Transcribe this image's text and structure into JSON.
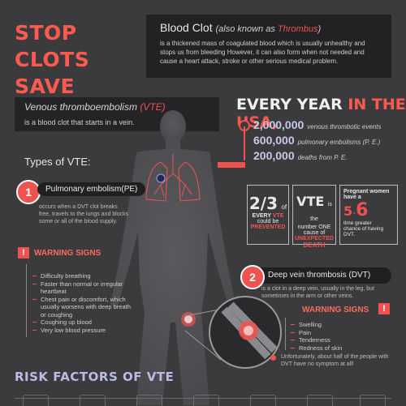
{
  "header": {
    "title_line1": "STOP CLOTS",
    "title_line2": "SAVE LIVES!"
  },
  "definition": {
    "term": "Blood Clot",
    "aka_prefix": "(also known as ",
    "aka_term": "Thrombus",
    "aka_suffix": ")",
    "text": "is a thickened mass of coagulated blood which is usually unhealthy and stops us from bleeding However, it can also form when not needed and cause a heart attack, stroke or other serious medical problem."
  },
  "vte": {
    "title": "Venous thromboembolism",
    "abbr": "(VTE)",
    "text": "is a blood clot that starts in a vein."
  },
  "types_heading": "Types of VTE:",
  "every_year": {
    "prefix": "EVERY YEAR",
    "suffix": "IN THE USA,",
    "stats": [
      {
        "value": "2,000,000",
        "label": "venous thrombotic events"
      },
      {
        "value": "600,000",
        "label": "pulmonary embolisms (P. E.)"
      },
      {
        "value": "200,000",
        "label": "deaths from P. E."
      }
    ]
  },
  "facts": {
    "f1_big": "2/3",
    "f1_small": "of",
    "f1_l1": "EVERY",
    "f1_l1b": "VTE",
    "f1_l2": "could be",
    "f1_l3": "PREVENTED",
    "f2_big": "VTE",
    "f2_small": "is the",
    "f2_l1": "number ONE",
    "f2_l2": "cause of",
    "f2_l3": "UNEXPECTED",
    "f2_l4": "DEATH",
    "f3_l1": "Pregnant women",
    "f3_l2": "have a",
    "f3_big1": "5",
    "f3_dash": "-",
    "f3_big2": "6",
    "f3_l3": "time greater",
    "f3_l4": "chance of having",
    "f3_l5": "DVT."
  },
  "pe": {
    "number": "1",
    "label": "Pulmonary embolism(PE)",
    "text": "occurs when a DVT clot breaks free, travels to the lungs and blocks some or all of the blood supply.",
    "warning_title": "WARNING SIGNS",
    "signs": [
      "Difficulty breathing",
      "Faster than normal or irregular heartbeat",
      "Chest pain or discomfort, which usually worsens with deep breath or coughing",
      "Coughing up blood",
      "Very low blood pressure"
    ]
  },
  "dvt": {
    "number": "2",
    "label": "Deep vein thrombosis (DVT)",
    "text": "is a clot in a deep vein, usually in the leg, but sometimes in the arm or other veins.",
    "warning_title": "WARNING SIGNS",
    "signs": [
      "Swelling",
      "Pain",
      "Tenderness",
      "Redness of skin"
    ],
    "note": "Unfortunately, about half of the people with DVT have no symptom at all!"
  },
  "risk_heading": "RISK FACTORS OF VTE",
  "icons": {
    "warning": "!"
  },
  "colors": {
    "accent": "#ef5350",
    "background": "#3b3b3d",
    "panel": "#222224",
    "stat_blue": "#c7c9e8"
  }
}
